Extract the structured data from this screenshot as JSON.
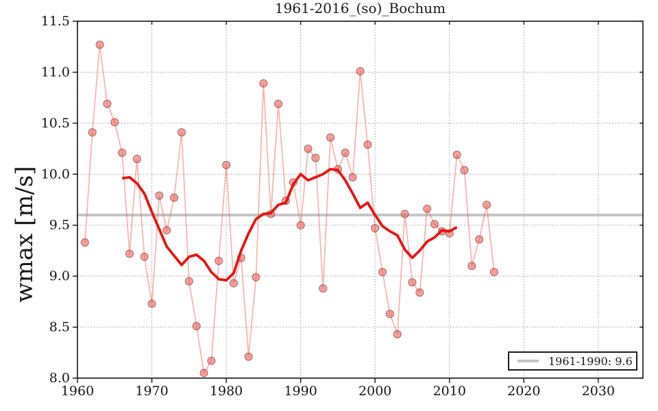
{
  "title": "1961-2016_(so)_Bochum",
  "y_axis_label": "wmax [m/s]",
  "legend": {
    "label": "1961-1990: 9.6",
    "position": "lower right"
  },
  "colors": {
    "background": "#ffffff",
    "annual_line": "rgba(244,84,76,0.45)",
    "marker_fill": "rgba(244,84,76,0.55)",
    "marker_edge": "rgba(125,82,80,0.8)",
    "smooth_line": "#e61414",
    "reference_line": "#c4c4c4",
    "grid": "#999999",
    "spine": "#141414",
    "text": "#141414"
  },
  "chart_data": {
    "type": "line",
    "title": "1961-2016_(so)_Bochum",
    "xlabel": "",
    "ylabel": "wmax [m/s]",
    "xlim": [
      1960,
      2036
    ],
    "ylim": [
      8.0,
      11.5
    ],
    "xticks": [
      1960,
      1970,
      1980,
      1990,
      2000,
      2010,
      2020,
      2030
    ],
    "yticks": [
      8.0,
      8.5,
      9.0,
      9.5,
      10.0,
      10.5,
      11.0,
      11.5
    ],
    "ytick_labels": [
      "8.0",
      "8.5",
      "9.0",
      "9.5",
      "10.0",
      "10.5",
      "11.0",
      "11.5"
    ],
    "grid": true,
    "legend_position": "lower right",
    "series": [
      {
        "name": "annual_wmax",
        "style": "line+markers",
        "x_start": 1961,
        "x": [
          1961,
          1962,
          1963,
          1964,
          1965,
          1966,
          1967,
          1968,
          1969,
          1970,
          1971,
          1972,
          1973,
          1974,
          1975,
          1976,
          1977,
          1978,
          1979,
          1980,
          1981,
          1982,
          1983,
          1984,
          1985,
          1986,
          1987,
          1988,
          1989,
          1990,
          1991,
          1992,
          1993,
          1994,
          1995,
          1996,
          1997,
          1998,
          1999,
          2000,
          2001,
          2002,
          2003,
          2004,
          2005,
          2006,
          2007,
          2008,
          2009,
          2010,
          2011,
          2012,
          2013,
          2014,
          2015,
          2016
        ],
        "values": [
          9.33,
          10.41,
          11.27,
          10.69,
          10.51,
          10.21,
          9.22,
          10.15,
          9.19,
          8.73,
          9.79,
          9.45,
          9.77,
          10.41,
          8.95,
          8.51,
          8.05,
          8.17,
          9.15,
          10.09,
          8.93,
          9.18,
          8.21,
          8.99,
          10.89,
          9.61,
          10.69,
          9.74,
          9.92,
          9.5,
          10.25,
          10.16,
          8.88,
          10.36,
          10.05,
          10.21,
          9.97,
          11.01,
          10.29,
          9.47,
          9.04,
          8.63,
          8.43,
          9.61,
          8.94,
          8.84,
          9.66,
          9.51,
          9.44,
          9.42,
          10.19,
          10.04,
          9.1,
          9.36,
          9.7,
          9.04
        ]
      },
      {
        "name": "running_mean_11yr",
        "style": "line",
        "x_start": 1966,
        "x": [
          1966,
          1967,
          1968,
          1969,
          1970,
          1971,
          1972,
          1973,
          1974,
          1975,
          1976,
          1977,
          1978,
          1979,
          1980,
          1981,
          1982,
          1983,
          1984,
          1985,
          1986,
          1987,
          1988,
          1989,
          1990,
          1991,
          1992,
          1993,
          1994,
          1995,
          1996,
          1997,
          1998,
          1999,
          2000,
          2001,
          2002,
          2003,
          2004,
          2005,
          2006,
          2007,
          2008,
          2009,
          2010,
          2011
        ],
        "values": [
          9.96,
          9.97,
          9.91,
          9.81,
          9.63,
          9.46,
          9.29,
          9.2,
          9.11,
          9.19,
          9.21,
          9.15,
          9.04,
          8.97,
          8.96,
          9.03,
          9.25,
          9.42,
          9.56,
          9.61,
          9.62,
          9.7,
          9.72,
          9.9,
          10.0,
          9.94,
          9.97,
          10.0,
          10.05,
          10.04,
          9.94,
          9.81,
          9.67,
          9.72,
          9.6,
          9.49,
          9.44,
          9.4,
          9.26,
          9.18,
          9.25,
          9.34,
          9.38,
          9.45,
          9.44,
          9.48
        ]
      },
      {
        "name": "reference_1961_1990",
        "style": "hline",
        "value": 9.6,
        "label": "1961-1990: 9.6"
      }
    ]
  }
}
